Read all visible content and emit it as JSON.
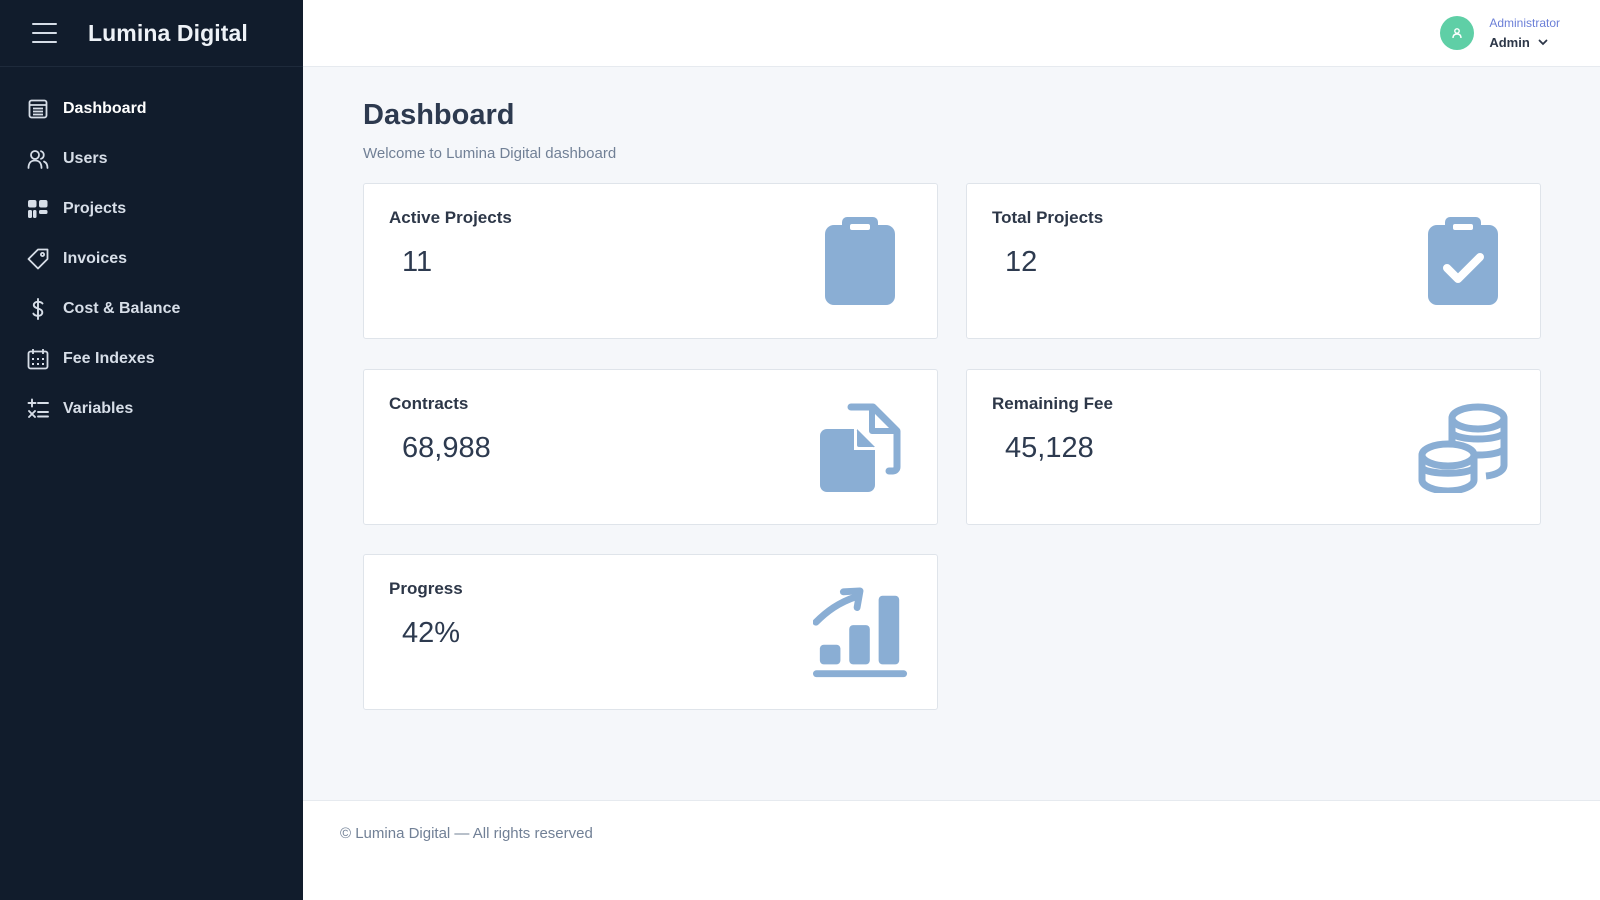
{
  "brand": {
    "name": "Lumina Digital"
  },
  "sidebar": {
    "items": [
      {
        "label": "Dashboard",
        "icon": "dashboard-icon",
        "active": true
      },
      {
        "label": "Users",
        "icon": "users-icon"
      },
      {
        "label": "Projects",
        "icon": "projects-icon"
      },
      {
        "label": "Invoices",
        "icon": "tag-icon"
      },
      {
        "label": "Cost & Balance",
        "icon": "dollar-icon"
      },
      {
        "label": "Fee Indexes",
        "icon": "calendar-icon"
      },
      {
        "label": "Variables",
        "icon": "variables-icon"
      }
    ]
  },
  "user": {
    "role": "Administrator",
    "name": "Admin"
  },
  "page": {
    "title": "Dashboard",
    "subtitle": "Welcome to Lumina Digital dashboard"
  },
  "cards": [
    {
      "title": "Active Projects",
      "value": "11",
      "icon": "clipboard-icon"
    },
    {
      "title": "Total Projects",
      "value": "12",
      "icon": "clipboard-check-icon"
    },
    {
      "title": "Contracts",
      "value": "68,988",
      "icon": "files-icon"
    },
    {
      "title": "Remaining Fee",
      "value": "45,128",
      "icon": "coins-icon"
    },
    {
      "title": "Progress",
      "value": "42%",
      "icon": "growth-chart-icon"
    }
  ],
  "footer": {
    "text": "© Lumina Digital — All rights reserved"
  },
  "colors": {
    "sidebar_bg": "#111c2c",
    "card_icon": "#8aaed4",
    "avatar": "#5fcfa6",
    "role_text": "#6b7fd7"
  }
}
